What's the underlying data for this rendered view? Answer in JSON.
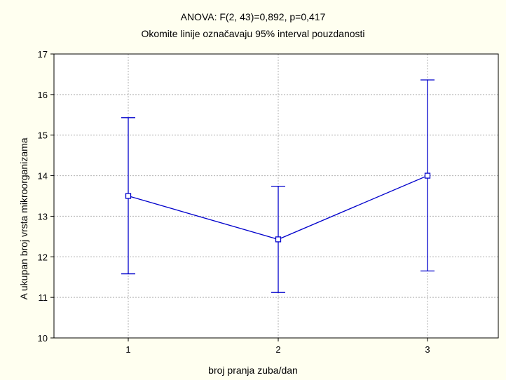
{
  "chart_data": {
    "type": "line",
    "title": "ANOVA: F(2, 43)=0,892, p=0,417",
    "subtitle": "Okomite linije označavaju 95% interval pouzdanosti",
    "xlabel": "broj pranja zuba/dan",
    "ylabel": "A ukupan broj vrsta mikroorganizama",
    "categories": [
      "1",
      "2",
      "3"
    ],
    "series": [
      {
        "values": [
          13.5,
          12.43,
          14.0
        ],
        "ci_lower": [
          11.58,
          11.12,
          11.65
        ],
        "ci_upper": [
          15.43,
          13.74,
          16.36
        ]
      }
    ],
    "ylim": [
      10,
      17
    ],
    "yticks": [
      "10",
      "11",
      "12",
      "13",
      "14",
      "15",
      "16",
      "17"
    ],
    "grid": true,
    "colors": {
      "series": "#0000cc",
      "marker_fill": "#ffffff",
      "grid": "#b0b0b0",
      "plot_bg": "#ffffff",
      "page_bg": "#fffff0"
    }
  }
}
